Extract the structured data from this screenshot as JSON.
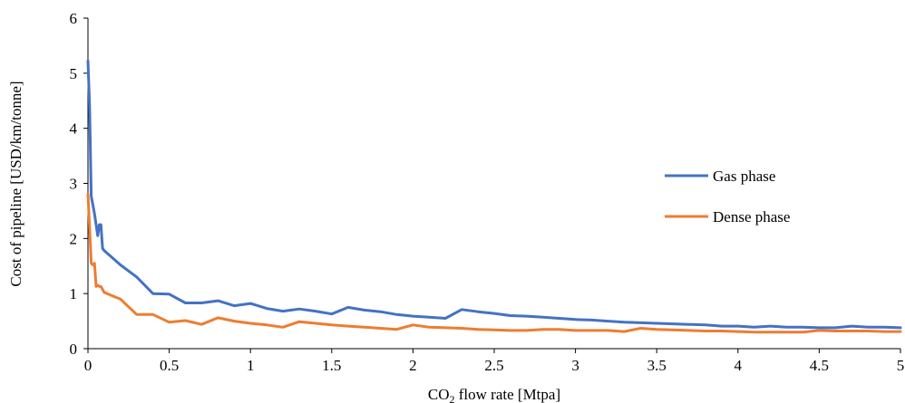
{
  "chart_data": {
    "type": "line",
    "title": "",
    "xlabel": {
      "prefix": "CO",
      "subscript": "2",
      "suffix": " flow rate [Mtpa]"
    },
    "ylabel": "Cost of pipeline [USD/km/tonne]",
    "xlim": [
      0,
      5
    ],
    "ylim": [
      0,
      6
    ],
    "x_ticks": [
      "0",
      "0.5",
      "1",
      "1.5",
      "2",
      "2.5",
      "3",
      "3.5",
      "4",
      "4.5",
      "5"
    ],
    "y_ticks": [
      "0",
      "1",
      "2",
      "3",
      "4",
      "5",
      "6"
    ],
    "grid": false,
    "legend_position": "right",
    "series": [
      {
        "name": "Gas phase",
        "color": "#4472C4",
        "points": [
          [
            0.0,
            5.22
          ],
          [
            0.01,
            4.4
          ],
          [
            0.02,
            2.77
          ],
          [
            0.04,
            2.45
          ],
          [
            0.06,
            2.05
          ],
          [
            0.07,
            2.25
          ],
          [
            0.08,
            2.25
          ],
          [
            0.09,
            1.82
          ],
          [
            0.1,
            1.78
          ],
          [
            0.2,
            1.52
          ],
          [
            0.3,
            1.3
          ],
          [
            0.4,
            1.0
          ],
          [
            0.5,
            0.99
          ],
          [
            0.6,
            0.83
          ],
          [
            0.7,
            0.83
          ],
          [
            0.8,
            0.87
          ],
          [
            0.9,
            0.78
          ],
          [
            1.0,
            0.82
          ],
          [
            1.1,
            0.73
          ],
          [
            1.2,
            0.68
          ],
          [
            1.3,
            0.72
          ],
          [
            1.4,
            0.68
          ],
          [
            1.5,
            0.63
          ],
          [
            1.6,
            0.75
          ],
          [
            1.7,
            0.7
          ],
          [
            1.8,
            0.67
          ],
          [
            1.9,
            0.62
          ],
          [
            2.0,
            0.59
          ],
          [
            2.1,
            0.57
          ],
          [
            2.2,
            0.55
          ],
          [
            2.3,
            0.71
          ],
          [
            2.4,
            0.67
          ],
          [
            2.5,
            0.64
          ],
          [
            2.6,
            0.6
          ],
          [
            2.7,
            0.59
          ],
          [
            2.8,
            0.57
          ],
          [
            2.9,
            0.55
          ],
          [
            3.0,
            0.53
          ],
          [
            3.1,
            0.52
          ],
          [
            3.2,
            0.5
          ],
          [
            3.3,
            0.48
          ],
          [
            3.4,
            0.47
          ],
          [
            3.5,
            0.46
          ],
          [
            3.6,
            0.45
          ],
          [
            3.7,
            0.44
          ],
          [
            3.8,
            0.43
          ],
          [
            3.9,
            0.41
          ],
          [
            4.0,
            0.41
          ],
          [
            4.1,
            0.39
          ],
          [
            4.2,
            0.41
          ],
          [
            4.3,
            0.39
          ],
          [
            4.4,
            0.39
          ],
          [
            4.5,
            0.38
          ],
          [
            4.6,
            0.38
          ],
          [
            4.7,
            0.41
          ],
          [
            4.8,
            0.39
          ],
          [
            4.9,
            0.39
          ],
          [
            5.0,
            0.38
          ]
        ]
      },
      {
        "name": "Dense phase",
        "color": "#ED7D31",
        "points": [
          [
            0.0,
            2.8
          ],
          [
            0.01,
            2.2
          ],
          [
            0.02,
            1.55
          ],
          [
            0.03,
            1.52
          ],
          [
            0.04,
            1.55
          ],
          [
            0.05,
            1.13
          ],
          [
            0.06,
            1.15
          ],
          [
            0.07,
            1.13
          ],
          [
            0.08,
            1.13
          ],
          [
            0.1,
            1.02
          ],
          [
            0.2,
            0.9
          ],
          [
            0.3,
            0.62
          ],
          [
            0.4,
            0.62
          ],
          [
            0.5,
            0.48
          ],
          [
            0.6,
            0.51
          ],
          [
            0.7,
            0.44
          ],
          [
            0.8,
            0.56
          ],
          [
            0.9,
            0.5
          ],
          [
            1.0,
            0.46
          ],
          [
            1.1,
            0.43
          ],
          [
            1.2,
            0.39
          ],
          [
            1.3,
            0.49
          ],
          [
            1.4,
            0.46
          ],
          [
            1.5,
            0.43
          ],
          [
            1.6,
            0.41
          ],
          [
            1.7,
            0.39
          ],
          [
            1.8,
            0.37
          ],
          [
            1.9,
            0.35
          ],
          [
            2.0,
            0.43
          ],
          [
            2.1,
            0.39
          ],
          [
            2.2,
            0.38
          ],
          [
            2.3,
            0.37
          ],
          [
            2.4,
            0.35
          ],
          [
            2.5,
            0.34
          ],
          [
            2.6,
            0.33
          ],
          [
            2.7,
            0.33
          ],
          [
            2.8,
            0.35
          ],
          [
            2.9,
            0.35
          ],
          [
            3.0,
            0.33
          ],
          [
            3.1,
            0.33
          ],
          [
            3.2,
            0.33
          ],
          [
            3.3,
            0.31
          ],
          [
            3.4,
            0.37
          ],
          [
            3.5,
            0.35
          ],
          [
            3.6,
            0.34
          ],
          [
            3.7,
            0.33
          ],
          [
            3.8,
            0.32
          ],
          [
            3.9,
            0.32
          ],
          [
            4.0,
            0.31
          ],
          [
            4.1,
            0.3
          ],
          [
            4.2,
            0.3
          ],
          [
            4.3,
            0.3
          ],
          [
            4.4,
            0.3
          ],
          [
            4.5,
            0.33
          ],
          [
            4.6,
            0.32
          ],
          [
            4.7,
            0.32
          ],
          [
            4.8,
            0.32
          ],
          [
            4.9,
            0.31
          ],
          [
            5.0,
            0.31
          ]
        ]
      }
    ]
  }
}
